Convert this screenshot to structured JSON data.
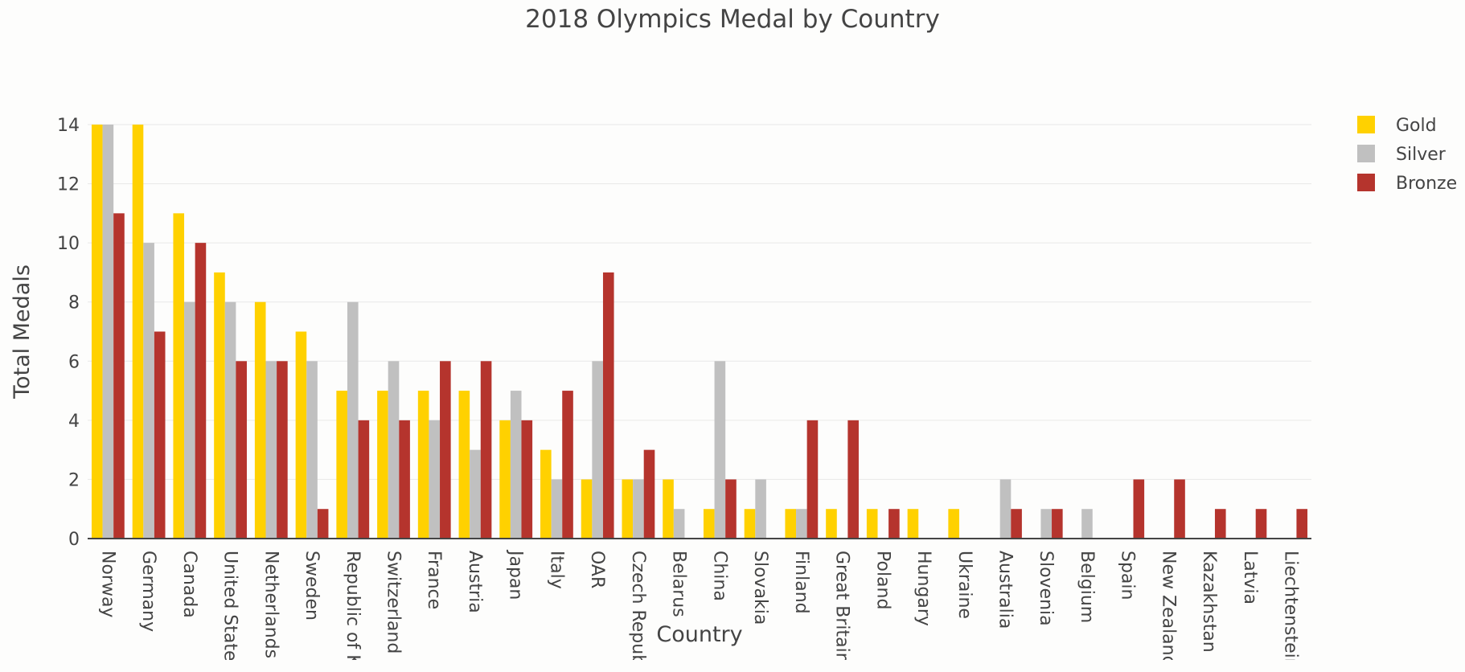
{
  "chart_data": {
    "type": "bar",
    "title": "2018 Olympics Medal by Country",
    "xlabel": "Country",
    "ylabel": "Total Medals",
    "ylim": [
      0,
      14
    ],
    "yticks": [
      0,
      2,
      4,
      6,
      8,
      10,
      12,
      14
    ],
    "grid": true,
    "legend_position": "top-right",
    "categories": [
      "Norway",
      "Germany",
      "Canada",
      "United States",
      "Netherlands",
      "Sweden",
      "Republic of Korea",
      "Switzerland",
      "France",
      "Austria",
      "Japan",
      "Italy",
      "OAR",
      "Czech Republic",
      "Belarus",
      "China",
      "Slovakia",
      "Finland",
      "Great Britain",
      "Poland",
      "Hungary",
      "Ukraine",
      "Australia",
      "Slovenia",
      "Belgium",
      "Spain",
      "New Zealand",
      "Kazakhstan",
      "Latvia",
      "Liechtenstein"
    ],
    "series": [
      {
        "name": "Gold",
        "color": "#FFD100",
        "values": [
          14,
          14,
          11,
          9,
          8,
          7,
          5,
          5,
          5,
          5,
          4,
          3,
          2,
          2,
          2,
          1,
          1,
          1,
          1,
          1,
          1,
          1,
          0,
          0,
          0,
          0,
          0,
          0,
          0,
          0
        ]
      },
      {
        "name": "Silver",
        "color": "#C0C0C0",
        "values": [
          14,
          10,
          8,
          8,
          6,
          6,
          8,
          6,
          4,
          3,
          5,
          2,
          6,
          2,
          1,
          6,
          2,
          1,
          0,
          0,
          0,
          0,
          2,
          1,
          1,
          0,
          0,
          0,
          0,
          0
        ]
      },
      {
        "name": "Bronze",
        "color": "#B5342D",
        "values": [
          11,
          7,
          10,
          6,
          6,
          1,
          4,
          4,
          6,
          6,
          4,
          5,
          9,
          3,
          0,
          2,
          0,
          4,
          4,
          1,
          0,
          0,
          1,
          1,
          0,
          2,
          2,
          1,
          1,
          1
        ]
      }
    ]
  }
}
